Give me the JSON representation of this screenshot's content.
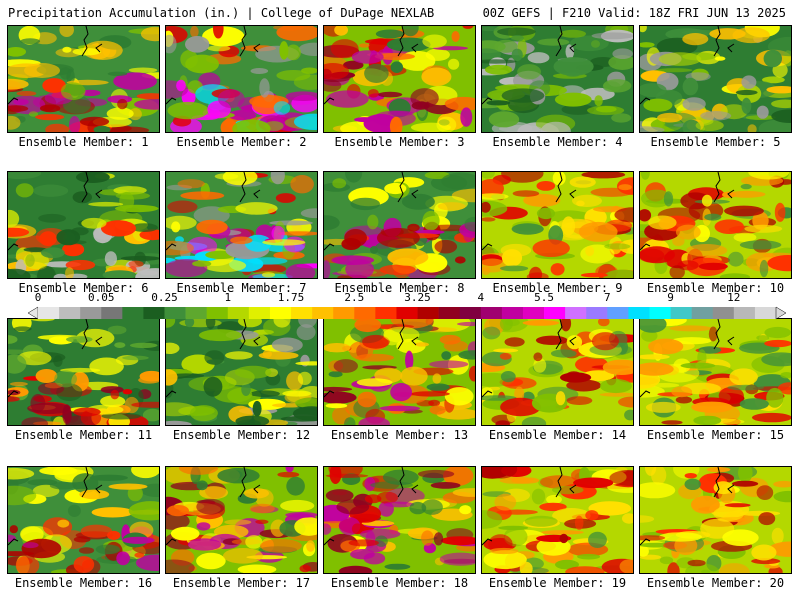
{
  "header": {
    "title": "Precipitation Accumulation (in.) | College of DuPage NEXLAB",
    "run_info": "00Z GEFS | F210 Valid: 18Z FRI JUN 13 2025"
  },
  "colorbar": {
    "tick_labels": [
      {
        "label": "0",
        "index": 0
      },
      {
        "label": "0.05",
        "index": 3
      },
      {
        "label": "0.25",
        "index": 6
      },
      {
        "label": "1",
        "index": 9
      },
      {
        "label": "1.75",
        "index": 12
      },
      {
        "label": "2.5",
        "index": 15
      },
      {
        "label": "3.25",
        "index": 18
      },
      {
        "label": "4",
        "index": 21
      },
      {
        "label": "5.5",
        "index": 24
      },
      {
        "label": "7",
        "index": 27
      },
      {
        "label": "9",
        "index": 30
      },
      {
        "label": "12",
        "index": 33
      }
    ],
    "colors": [
      "#e6e6e6",
      "#bdbdbd",
      "#9a9a9a",
      "#777777",
      "#2e7d32",
      "#1b5e20",
      "#3f8f3a",
      "#5ea82e",
      "#80c000",
      "#b4d800",
      "#e0f000",
      "#ffff00",
      "#ffe000",
      "#ffc000",
      "#ff9a00",
      "#ff6a00",
      "#ff3000",
      "#e00000",
      "#b00000",
      "#900020",
      "#800040",
      "#a00070",
      "#c000a0",
      "#e000c0",
      "#ff00ff",
      "#d070ff",
      "#9a7aff",
      "#60a0ff",
      "#00e0ff",
      "#00ffff",
      "#40c8c8",
      "#70a0a0",
      "#909090",
      "#b8b8b8",
      "#d8d8d8"
    ]
  },
  "members": [
    {
      "label": "Ensemble Member: 1",
      "theme": "wet-south"
    },
    {
      "label": "Ensemble Member: 2",
      "theme": "very-wet-south"
    },
    {
      "label": "Ensemble Member: 3",
      "theme": "wet-central"
    },
    {
      "label": "Ensemble Member: 4",
      "theme": "dry"
    },
    {
      "label": "Ensemble Member: 5",
      "theme": "moderate"
    },
    {
      "label": "Ensemble Member: 6",
      "theme": "dry-south"
    },
    {
      "label": "Ensemble Member: 7",
      "theme": "very-wet-south"
    },
    {
      "label": "Ensemble Member: 8",
      "theme": "wet-south"
    },
    {
      "label": "Ensemble Member: 9",
      "theme": "wet-all"
    },
    {
      "label": "Ensemble Member: 10",
      "theme": "wet-all"
    },
    {
      "label": "Ensemble Member: 11",
      "theme": "moderate-south"
    },
    {
      "label": "Ensemble Member: 12",
      "theme": "moderate"
    },
    {
      "label": "Ensemble Member: 13",
      "theme": "wet-central"
    },
    {
      "label": "Ensemble Member: 14",
      "theme": "wet-all"
    },
    {
      "label": "Ensemble Member: 15",
      "theme": "wet-all"
    },
    {
      "label": "Ensemble Member: 16",
      "theme": "wet-south"
    },
    {
      "label": "Ensemble Member: 17",
      "theme": "wet-central"
    },
    {
      "label": "Ensemble Member: 18",
      "theme": "wet-central"
    },
    {
      "label": "Ensemble Member: 19",
      "theme": "wet-all"
    },
    {
      "label": "Ensemble Member: 20",
      "theme": "wet-all"
    }
  ]
}
